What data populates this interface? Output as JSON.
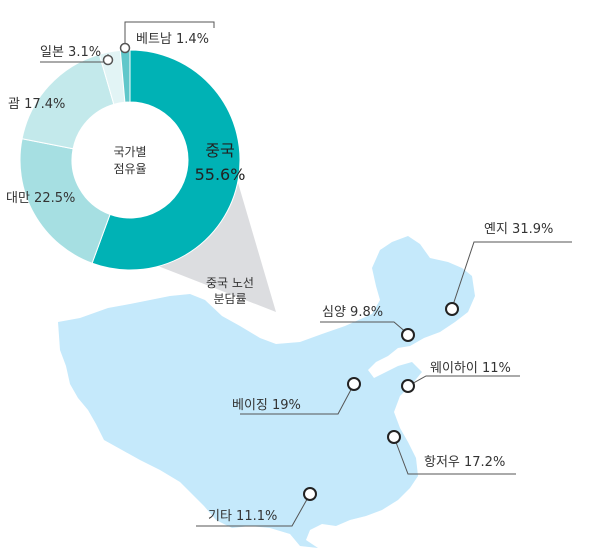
{
  "chart_data": [
    {
      "type": "pie",
      "center_label": [
        "국가별",
        "점유율"
      ],
      "slices": [
        {
          "label": "중국",
          "value": 55.6,
          "color": "#00b2b5"
        },
        {
          "label": "대만",
          "value": 22.5,
          "color": "#a6dfe2"
        },
        {
          "label": "괌",
          "value": 17.4,
          "color": "#c3e9eb"
        },
        {
          "label": "일본",
          "value": 3.1,
          "color": "#e2f4f5"
        },
        {
          "label": "베트남",
          "value": 1.4,
          "color": "#60c7ca"
        }
      ],
      "callouts": {
        "china": {
          "name": "중국",
          "value": "55.6%"
        },
        "taiwan": "대만 22.5%",
        "guam": "괌 17.4%",
        "japan": "일본 3.1%",
        "vietnam": "베트남 1.4%"
      }
    },
    {
      "type": "map",
      "title": [
        "중국 노선",
        "분담률"
      ],
      "points": [
        {
          "key": "yanji",
          "label": "옌지 31.9%",
          "value": 31.9
        },
        {
          "key": "shenyang",
          "label": "심양 9.8%",
          "value": 9.8
        },
        {
          "key": "weihai",
          "label": "웨이하이 11%",
          "value": 11
        },
        {
          "key": "beijing",
          "label": "베이징 19%",
          "value": 19
        },
        {
          "key": "hangzhou",
          "label": "항저우 17.2%",
          "value": 17.2
        },
        {
          "key": "other",
          "label": "기타 11.1%",
          "value": 11.1
        }
      ]
    }
  ]
}
